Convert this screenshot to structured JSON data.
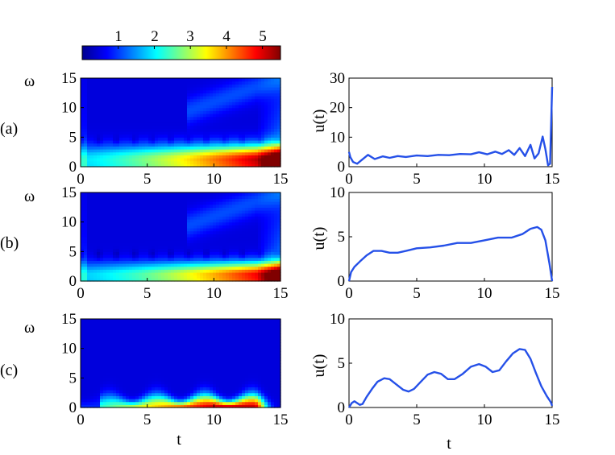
{
  "colorbar": {
    "ticks": [
      "1",
      "2",
      "3",
      "4",
      "5"
    ],
    "tick_values": [
      1,
      2,
      3,
      4,
      5
    ],
    "range": [
      0,
      5.5
    ],
    "colormap": "jet"
  },
  "labels": {
    "omega": "ω",
    "u": "u(t)",
    "t": "t",
    "row_a": "(a)",
    "row_b": "(b)",
    "row_c": "(c)"
  },
  "chart_data": [
    {
      "id": "a-heatmap",
      "type": "heatmap",
      "panel": "(a)",
      "xlabel": "",
      "ylabel": "ω",
      "xlim": [
        0,
        15
      ],
      "ylim": [
        0,
        15
      ],
      "xticks": [
        "0",
        "5",
        "10",
        "15"
      ],
      "yticks": [
        "0",
        "5",
        "10",
        "15"
      ],
      "profile": "a"
    },
    {
      "id": "a-line",
      "type": "line",
      "panel": "(a)",
      "xlabel": "",
      "ylabel": "u(t)",
      "xlim": [
        0,
        15
      ],
      "ylim": [
        0,
        30
      ],
      "xticks": [
        "0",
        "5",
        "10",
        "15"
      ],
      "yticks": [
        "0",
        "10",
        "20",
        "30"
      ],
      "color": "#2550e8",
      "series": [
        {
          "name": "u(t)",
          "x": [
            0,
            0.1,
            0.3,
            0.6,
            1.0,
            1.4,
            1.9,
            2.5,
            3.0,
            3.6,
            4.2,
            5.0,
            5.8,
            6.6,
            7.4,
            8.2,
            9.0,
            9.6,
            10.2,
            10.8,
            11.3,
            11.8,
            12.2,
            12.6,
            13.0,
            13.4,
            13.7,
            14.0,
            14.3,
            14.5,
            14.7,
            14.85,
            15.0
          ],
          "y": [
            5,
            3.2,
            1.6,
            1.0,
            2.5,
            4.0,
            2.6,
            3.5,
            3.0,
            3.6,
            3.3,
            3.8,
            3.6,
            4.0,
            3.9,
            4.3,
            4.2,
            4.9,
            4.2,
            5.1,
            4.3,
            5.6,
            4.0,
            6.3,
            3.6,
            7.4,
            2.8,
            4.5,
            10.2,
            6.0,
            0.5,
            1.0,
            27
          ]
        }
      ]
    },
    {
      "id": "b-heatmap",
      "type": "heatmap",
      "panel": "(b)",
      "xlabel": "",
      "ylabel": "ω",
      "xlim": [
        0,
        15
      ],
      "ylim": [
        0,
        15
      ],
      "xticks": [
        "0",
        "5",
        "10",
        "15"
      ],
      "yticks": [
        "0",
        "5",
        "10",
        "15"
      ],
      "profile": "b"
    },
    {
      "id": "b-line",
      "type": "line",
      "panel": "(b)",
      "xlabel": "",
      "ylabel": "u(t)",
      "xlim": [
        0,
        15
      ],
      "ylim": [
        0,
        10
      ],
      "xticks": [
        "0",
        "5",
        "10",
        "15"
      ],
      "yticks": [
        "0",
        "5",
        "10"
      ],
      "color": "#2550e8",
      "series": [
        {
          "name": "u(t)",
          "x": [
            0,
            0.15,
            0.4,
            0.8,
            1.3,
            1.8,
            2.4,
            3.0,
            3.6,
            4.2,
            5.0,
            6.0,
            7.0,
            8.0,
            9.0,
            10.0,
            11.0,
            12.0,
            12.8,
            13.4,
            13.9,
            14.2,
            14.5,
            14.8,
            15.0
          ],
          "y": [
            0,
            1.0,
            1.6,
            2.2,
            2.9,
            3.4,
            3.4,
            3.2,
            3.2,
            3.4,
            3.7,
            3.8,
            4.0,
            4.3,
            4.3,
            4.6,
            4.9,
            4.9,
            5.3,
            5.9,
            6.1,
            5.8,
            4.6,
            2.0,
            0
          ]
        }
      ]
    },
    {
      "id": "c-heatmap",
      "type": "heatmap",
      "panel": "(c)",
      "xlabel": "t",
      "ylabel": "ω",
      "xlim": [
        0,
        15
      ],
      "ylim": [
        0,
        15
      ],
      "xticks": [
        "0",
        "5",
        "10",
        "15"
      ],
      "yticks": [
        "0",
        "5",
        "10",
        "15"
      ],
      "profile": "c"
    },
    {
      "id": "c-line",
      "type": "line",
      "panel": "(c)",
      "xlabel": "t",
      "ylabel": "u(t)",
      "xlim": [
        0,
        15
      ],
      "ylim": [
        0,
        10
      ],
      "xticks": [
        "0",
        "5",
        "10",
        "15"
      ],
      "yticks": [
        "0",
        "5",
        "10"
      ],
      "color": "#2550e8",
      "series": [
        {
          "name": "u(t)",
          "x": [
            0,
            0.2,
            0.4,
            0.6,
            0.8,
            1.0,
            1.3,
            1.7,
            2.1,
            2.6,
            3.0,
            3.5,
            4.0,
            4.4,
            4.8,
            5.3,
            5.8,
            6.3,
            6.8,
            7.3,
            7.8,
            8.4,
            9.0,
            9.6,
            10.1,
            10.6,
            11.1,
            11.6,
            12.1,
            12.6,
            13.0,
            13.4,
            13.8,
            14.2,
            14.6,
            14.9,
            15.0
          ],
          "y": [
            0,
            0.5,
            0.7,
            0.5,
            0.3,
            0.4,
            1.2,
            2.1,
            2.9,
            3.3,
            3.2,
            2.6,
            2.0,
            1.8,
            2.1,
            2.9,
            3.7,
            4.0,
            3.8,
            3.2,
            3.2,
            3.8,
            4.6,
            4.9,
            4.6,
            4.0,
            4.2,
            5.2,
            6.1,
            6.6,
            6.5,
            5.5,
            3.9,
            2.4,
            1.3,
            0.6,
            0.2
          ]
        }
      ]
    }
  ]
}
